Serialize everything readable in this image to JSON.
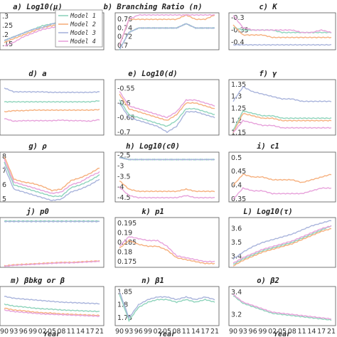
{
  "colors": {
    "Model 1": "#8fd4bc",
    "Model 2": "#f6b07e",
    "Model 3": "#a9b4dc",
    "Model 4": "#e7a2db"
  },
  "legend": {
    "entries": [
      "Model 1",
      "Model 2",
      "Model 3",
      "Model 4"
    ],
    "placement": "inside panel a, top-right"
  },
  "x_axis": {
    "label": "Year",
    "ticks": [
      "90",
      "93",
      "96",
      "99",
      "02",
      "05",
      "08",
      "11",
      "14",
      "17",
      "21"
    ]
  },
  "chart_data": [
    {
      "id": "a",
      "type": "line",
      "title": "a)   Log10(μ)",
      "yticks": [
        ".15",
        ".2",
        ".25",
        ".3"
      ],
      "ylim": [
        0.12,
        0.32
      ],
      "yticklabels_show": true,
      "series": [
        {
          "name": "Model 1",
          "values": [
            0.17,
            0.19,
            0.21,
            0.23,
            0.25,
            0.26,
            0.27,
            0.28,
            0.29,
            0.29,
            0.3
          ]
        },
        {
          "name": "Model 2",
          "values": [
            0.16,
            0.18,
            0.2,
            0.22,
            0.24,
            0.25,
            0.26,
            0.27,
            0.28,
            0.29,
            0.3
          ]
        },
        {
          "name": "Model 3",
          "values": [
            0.17,
            0.19,
            0.21,
            0.23,
            0.24,
            0.26,
            0.27,
            0.28,
            0.29,
            0.29,
            0.3
          ]
        },
        {
          "name": "Model 4",
          "values": [
            0.14,
            0.16,
            0.19,
            0.21,
            0.23,
            0.24,
            0.25,
            0.26,
            0.27,
            0.28,
            0.3
          ]
        }
      ]
    },
    {
      "id": "b",
      "type": "line",
      "title": "b)   Branching Ratio (n)",
      "yticks": [
        "0.7",
        "0.72",
        "0.74",
        "0.76"
      ],
      "ylim": [
        0.69,
        0.775
      ],
      "series": [
        {
          "name": "Model 1",
          "values": [
            0.69,
            0.73,
            0.74,
            0.74,
            0.74,
            0.74,
            0.74,
            0.75,
            0.74,
            0.74,
            0.74
          ]
        },
        {
          "name": "Model 2",
          "values": [
            0.7,
            0.76,
            0.76,
            0.76,
            0.76,
            0.76,
            0.76,
            0.77,
            0.76,
            0.76,
            0.77
          ]
        },
        {
          "name": "Model 3",
          "values": [
            0.69,
            0.73,
            0.74,
            0.74,
            0.74,
            0.74,
            0.74,
            0.75,
            0.74,
            0.74,
            0.74
          ]
        },
        {
          "name": "Model 4",
          "values": [
            0.7,
            0.76,
            0.77,
            0.77,
            0.77,
            0.77,
            0.77,
            0.77,
            0.77,
            0.77,
            0.77
          ]
        }
      ]
    },
    {
      "id": "c",
      "type": "line",
      "title": "c)   K",
      "yticks": [
        "-0.3",
        "-0.35",
        "-0.4"
      ],
      "ylim": [
        -0.43,
        -0.28
      ],
      "series": [
        {
          "name": "Model 1",
          "values": [
            -0.34,
            -0.35,
            -0.35,
            -0.35,
            -0.35,
            -0.36,
            -0.36,
            -0.36,
            -0.36,
            -0.36,
            -0.36
          ]
        },
        {
          "name": "Model 2",
          "values": [
            -0.33,
            -0.37,
            -0.37,
            -0.37,
            -0.38,
            -0.38,
            -0.38,
            -0.38,
            -0.38,
            -0.38,
            -0.38
          ]
        },
        {
          "name": "Model 3",
          "values": [
            -0.41,
            -0.41,
            -0.41,
            -0.41,
            -0.41,
            -0.41,
            -0.41,
            -0.41,
            -0.41,
            -0.41,
            -0.41
          ]
        },
        {
          "name": "Model 4",
          "values": [
            -0.29,
            -0.34,
            -0.35,
            -0.35,
            -0.35,
            -0.35,
            -0.35,
            -0.36,
            -0.36,
            -0.35,
            -0.36
          ]
        }
      ]
    },
    {
      "id": "d",
      "type": "line",
      "title": "d)   a",
      "yticks": [],
      "ylim": [
        0,
        1
      ],
      "series": [
        {
          "name": "Model 1",
          "values": [
            0.6,
            0.6,
            0.6,
            0.6,
            0.6,
            0.6,
            0.6,
            0.6,
            0.6,
            0.6,
            0.62
          ]
        },
        {
          "name": "Model 2",
          "values": [
            0.42,
            0.44,
            0.44,
            0.45,
            0.45,
            0.45,
            0.45,
            0.45,
            0.45,
            0.45,
            0.46
          ]
        },
        {
          "name": "Model 3",
          "values": [
            0.85,
            0.78,
            0.78,
            0.78,
            0.78,
            0.77,
            0.77,
            0.77,
            0.77,
            0.77,
            0.78
          ]
        },
        {
          "name": "Model 4",
          "values": [
            0.3,
            0.25,
            0.26,
            0.26,
            0.26,
            0.26,
            0.27,
            0.26,
            0.26,
            0.25,
            0.28
          ]
        }
      ]
    },
    {
      "id": "e",
      "type": "line",
      "title": "e)   Log10(d)",
      "yticks": [
        "-0.55",
        "-0.6",
        "-0.65",
        "-0.7"
      ],
      "ylim": [
        -0.71,
        -0.52
      ],
      "series": [
        {
          "name": "Model 1",
          "values": [
            -0.59,
            -0.64,
            -0.65,
            -0.66,
            -0.67,
            -0.68,
            -0.66,
            -0.62,
            -0.62,
            -0.63,
            -0.64
          ]
        },
        {
          "name": "Model 2",
          "values": [
            -0.57,
            -0.62,
            -0.63,
            -0.64,
            -0.65,
            -0.66,
            -0.64,
            -0.6,
            -0.6,
            -0.61,
            -0.62
          ]
        },
        {
          "name": "Model 3",
          "values": [
            -0.6,
            -0.65,
            -0.66,
            -0.67,
            -0.68,
            -0.7,
            -0.68,
            -0.63,
            -0.63,
            -0.64,
            -0.65
          ]
        },
        {
          "name": "Model 4",
          "values": [
            -0.56,
            -0.61,
            -0.62,
            -0.63,
            -0.64,
            -0.65,
            -0.63,
            -0.59,
            -0.59,
            -0.6,
            -0.61
          ]
        }
      ]
    },
    {
      "id": "f",
      "type": "line",
      "title": "f)   γ",
      "yticks": [
        "1.35",
        "1.3",
        "1.25",
        "1.2",
        "1.15"
      ],
      "ylim": [
        1.14,
        1.37
      ],
      "series": [
        {
          "name": "Model 1",
          "values": [
            1.16,
            1.24,
            1.23,
            1.22,
            1.22,
            1.21,
            1.21,
            1.21,
            1.21,
            1.21,
            1.21
          ]
        },
        {
          "name": "Model 2",
          "values": [
            1.15,
            1.23,
            1.22,
            1.21,
            1.21,
            1.2,
            1.2,
            1.2,
            1.2,
            1.2,
            1.2
          ]
        },
        {
          "name": "Model 3",
          "values": [
            1.28,
            1.34,
            1.32,
            1.31,
            1.3,
            1.29,
            1.29,
            1.28,
            1.28,
            1.28,
            1.28
          ]
        },
        {
          "name": "Model 4",
          "values": [
            1.15,
            1.2,
            1.19,
            1.18,
            1.18,
            1.17,
            1.17,
            1.17,
            1.17,
            1.17,
            1.17
          ]
        }
      ]
    },
    {
      "id": "g",
      "type": "line",
      "title": "g)   ρ",
      "yticks": [
        "8",
        "7",
        "6",
        "5"
      ],
      "ylim": [
        4.8,
        8.3
      ],
      "series": [
        {
          "name": "Model 1",
          "values": [
            7.6,
            6.0,
            5.8,
            5.6,
            5.4,
            5.2,
            5.2,
            5.8,
            6.0,
            6.3,
            6.7
          ]
        },
        {
          "name": "Model 2",
          "values": [
            8.0,
            6.4,
            6.2,
            6.1,
            5.9,
            5.6,
            5.7,
            6.3,
            6.5,
            6.8,
            7.2
          ]
        },
        {
          "name": "Model 3",
          "values": [
            7.3,
            5.7,
            5.5,
            5.3,
            5.1,
            4.9,
            5.0,
            5.5,
            5.7,
            6.0,
            6.4
          ]
        },
        {
          "name": "Model 4",
          "values": [
            7.8,
            6.2,
            6.0,
            5.8,
            5.6,
            5.4,
            5.5,
            6.0,
            6.2,
            6.6,
            6.9
          ]
        }
      ]
    },
    {
      "id": "h",
      "type": "line",
      "title": "h)   Log10(c0)",
      "yticks": [
        "-2.5",
        "-3",
        "-3.5",
        "-4",
        "-4.5"
      ],
      "ylim": [
        -4.7,
        -2.35
      ],
      "series": [
        {
          "name": "Model 1",
          "values": [
            -2.6,
            -2.7,
            -2.7,
            -2.7,
            -2.7,
            -2.7,
            -2.7,
            -2.7,
            -2.7,
            -2.7,
            -2.7
          ]
        },
        {
          "name": "Model 2",
          "values": [
            -3.7,
            -4.1,
            -4.2,
            -4.2,
            -4.2,
            -4.2,
            -4.2,
            -4.1,
            -4.2,
            -4.2,
            -4.2
          ]
        },
        {
          "name": "Model 3",
          "values": [
            -2.6,
            -2.7,
            -2.7,
            -2.7,
            -2.7,
            -2.7,
            -2.7,
            -2.7,
            -2.7,
            -2.7,
            -2.7
          ]
        },
        {
          "name": "Model 4",
          "values": [
            -4.0,
            -4.4,
            -4.5,
            -4.5,
            -4.5,
            -4.5,
            -4.5,
            -4.4,
            -4.5,
            -4.5,
            -4.5
          ]
        }
      ]
    },
    {
      "id": "i",
      "type": "line",
      "title": "i)   c1",
      "yticks": [
        "0.5",
        "0.45",
        "0.4",
        "0.35"
      ],
      "ylim": [
        0.34,
        0.52
      ],
      "series": [
        {
          "name": "Model 2",
          "values": [
            0.4,
            0.44,
            0.43,
            0.43,
            0.42,
            0.42,
            0.42,
            0.41,
            0.42,
            0.43,
            0.44
          ]
        },
        {
          "name": "Model 4",
          "values": [
            0.35,
            0.39,
            0.38,
            0.38,
            0.37,
            0.37,
            0.37,
            0.37,
            0.38,
            0.39,
            0.39
          ]
        }
      ]
    },
    {
      "id": "j",
      "type": "line",
      "title": "j)   p0",
      "yticks": [],
      "ylim": [
        0,
        1
      ],
      "series": [
        {
          "name": "Model 1",
          "values": [
            0.93,
            0.93,
            0.93,
            0.93,
            0.93,
            0.93,
            0.93,
            0.93,
            0.93,
            0.93,
            0.93
          ]
        },
        {
          "name": "Model 2",
          "values": [
            0.03,
            0.05,
            0.06,
            0.07,
            0.08,
            0.09,
            0.1,
            0.1,
            0.11,
            0.12,
            0.13
          ]
        },
        {
          "name": "Model 3",
          "values": [
            0.92,
            0.92,
            0.92,
            0.92,
            0.92,
            0.92,
            0.92,
            0.92,
            0.92,
            0.92,
            0.92
          ]
        },
        {
          "name": "Model 4",
          "values": [
            0.02,
            0.04,
            0.05,
            0.06,
            0.07,
            0.08,
            0.09,
            0.09,
            0.1,
            0.11,
            0.12
          ]
        }
      ]
    },
    {
      "id": "k",
      "type": "line",
      "title": "k)   p1",
      "yticks": [
        "0.195",
        "0.19",
        "0.185",
        "0.18",
        "0.175"
      ],
      "ylim": [
        0.172,
        0.198
      ],
      "series": [
        {
          "name": "Model 2",
          "values": [
            0.182,
            0.186,
            0.184,
            0.183,
            0.183,
            0.181,
            0.177,
            0.176,
            0.175,
            0.174,
            0.174
          ]
        },
        {
          "name": "Model 4",
          "values": [
            0.183,
            0.188,
            0.187,
            0.186,
            0.186,
            0.183,
            0.178,
            0.177,
            0.176,
            0.175,
            0.175
          ]
        }
      ]
    },
    {
      "id": "l",
      "type": "line",
      "title": "L)   Log10(τ)",
      "yticks": [
        "3.6",
        "3.5",
        "3.4"
      ],
      "ylim": [
        3.32,
        3.68
      ],
      "series": [
        {
          "name": "Model 1",
          "values": [
            3.34,
            3.38,
            3.41,
            3.44,
            3.46,
            3.48,
            3.5,
            3.53,
            3.56,
            3.59,
            3.62
          ]
        },
        {
          "name": "Model 2",
          "values": [
            3.33,
            3.37,
            3.4,
            3.43,
            3.45,
            3.47,
            3.49,
            3.52,
            3.55,
            3.58,
            3.6
          ]
        },
        {
          "name": "Model 3",
          "values": [
            3.38,
            3.43,
            3.47,
            3.5,
            3.52,
            3.54,
            3.56,
            3.59,
            3.62,
            3.64,
            3.66
          ]
        },
        {
          "name": "Model 4",
          "values": [
            3.35,
            3.39,
            3.42,
            3.45,
            3.47,
            3.49,
            3.51,
            3.54,
            3.57,
            3.6,
            3.62
          ]
        }
      ]
    },
    {
      "id": "m",
      "type": "line",
      "title": "m)   βbkg or β",
      "yticks": [],
      "ylim": [
        0,
        1
      ],
      "series": [
        {
          "name": "Model 1",
          "values": [
            0.55,
            0.5,
            0.48,
            0.45,
            0.43,
            0.42,
            0.4,
            0.39,
            0.38,
            0.37,
            0.36
          ]
        },
        {
          "name": "Model 2",
          "values": [
            0.45,
            0.4,
            0.38,
            0.35,
            0.33,
            0.32,
            0.3,
            0.29,
            0.28,
            0.27,
            0.26
          ]
        },
        {
          "name": "Model 3",
          "values": [
            0.75,
            0.7,
            0.68,
            0.66,
            0.64,
            0.62,
            0.6,
            0.59,
            0.58,
            0.57,
            0.56
          ]
        },
        {
          "name": "Model 4",
          "values": [
            0.4,
            0.36,
            0.34,
            0.32,
            0.3,
            0.29,
            0.28,
            0.27,
            0.26,
            0.25,
            0.24
          ]
        }
      ]
    },
    {
      "id": "n",
      "type": "line",
      "title": "n)   β1",
      "yticks": [
        "1.85",
        "1.8",
        "1.75"
      ],
      "ylim": [
        1.72,
        1.87
      ],
      "series": [
        {
          "name": "Model 1",
          "values": [
            1.84,
            1.74,
            1.79,
            1.81,
            1.82,
            1.82,
            1.81,
            1.82,
            1.81,
            1.82,
            1.81
          ]
        },
        {
          "name": "Model 3",
          "values": [
            1.85,
            1.75,
            1.8,
            1.82,
            1.83,
            1.83,
            1.82,
            1.83,
            1.82,
            1.83,
            1.82
          ]
        }
      ]
    },
    {
      "id": "o",
      "type": "line",
      "title": "o)   β2",
      "yticks": [
        "3.4",
        "3.2"
      ],
      "ylim": [
        3.1,
        3.45
      ],
      "series": [
        {
          "name": "Model 1",
          "values": [
            3.37,
            3.3,
            3.27,
            3.24,
            3.21,
            3.2,
            3.19,
            3.18,
            3.17,
            3.16,
            3.15
          ]
        },
        {
          "name": "Model 4",
          "values": [
            3.38,
            3.31,
            3.28,
            3.25,
            3.22,
            3.21,
            3.2,
            3.19,
            3.18,
            3.17,
            3.16
          ]
        }
      ]
    }
  ]
}
